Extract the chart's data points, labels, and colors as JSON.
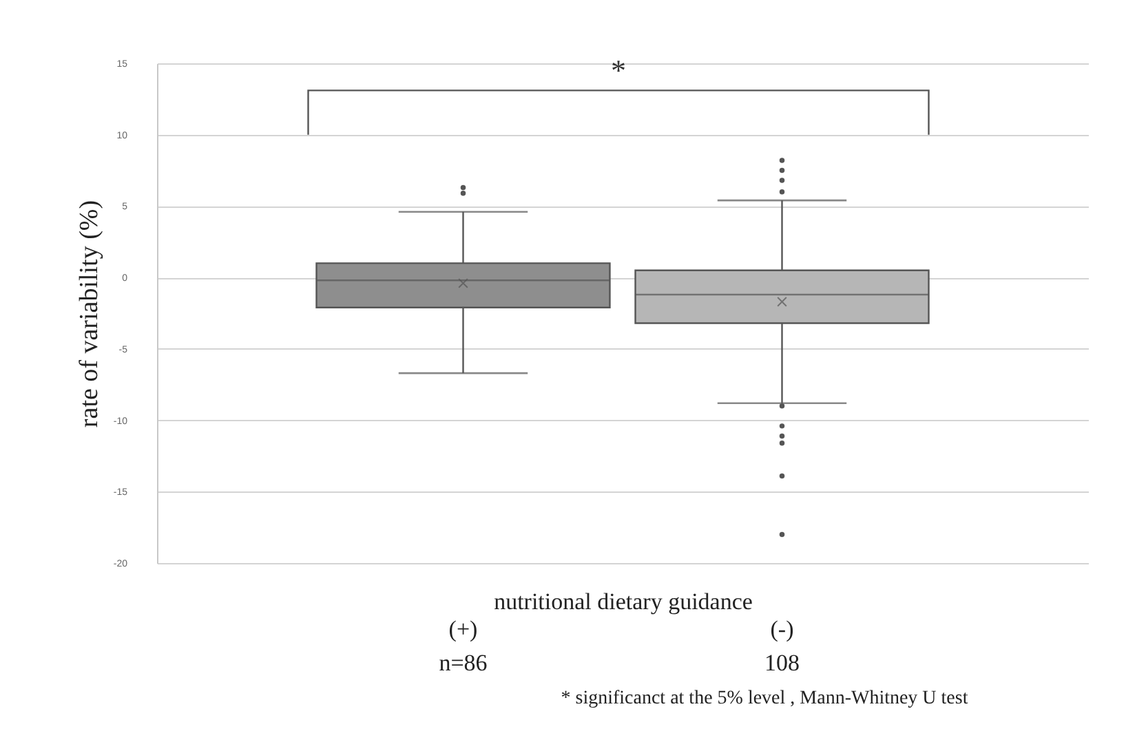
{
  "chart_data": {
    "type": "box",
    "ylabel": "rate of variability (%)",
    "xlabel": "nutritional dietary guidance",
    "categories": [
      "(+)",
      "(-)"
    ],
    "colors": [
      "#8e8e8e",
      "#b6b6b6"
    ],
    "boxes": [
      {
        "low": -6.7,
        "q1": -2.1,
        "median": -0.2,
        "q3": 1.0,
        "high": 4.6,
        "mean": -0.4,
        "outliers": [
          5.9,
          6.3
        ]
      },
      {
        "low": -8.8,
        "q1": -3.2,
        "median": -1.2,
        "q3": 0.5,
        "high": 5.4,
        "mean": -1.7,
        "outliers": [
          6.0,
          6.8,
          7.5,
          8.2,
          -9.0,
          -10.4,
          -11.1,
          -11.6,
          -13.9,
          -18.0
        ]
      }
    ],
    "ylim": [
      -20,
      15
    ],
    "yticks": [
      -20,
      -15,
      -10,
      -5,
      0,
      5,
      10,
      15
    ],
    "grid": true,
    "annotations": [
      "*",
      "n=86",
      "108",
      "* significanct at the 5% level , Mann-Whitney U test"
    ]
  }
}
